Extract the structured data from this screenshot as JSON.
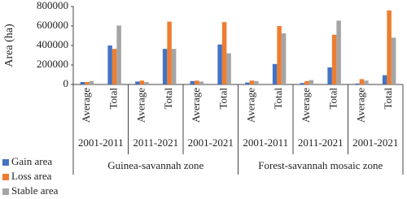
{
  "chart_data": {
    "type": "bar",
    "y_label": "Area (ha)",
    "categories": [
      "Average",
      "Total",
      "Average",
      "Total",
      "Average",
      "Total",
      "Average",
      "Total",
      "Average",
      "Total",
      "Average",
      "Total"
    ],
    "periods": [
      "2001-2011",
      "2011-2021",
      "2001-2021",
      "2001-2011",
      "2011-2021",
      "2001-2021"
    ],
    "zones": [
      "Guinea-savannah zone",
      "Forest-savannah mosaic zone"
    ],
    "series": [
      {
        "name": "Gain area",
        "color": "#4472c4",
        "values": [
          25000,
          400000,
          30000,
          365000,
          35000,
          410000,
          20000,
          210000,
          15000,
          175000,
          10000,
          95000
        ]
      },
      {
        "name": "Loss area",
        "color": "#ed7d31",
        "values": [
          25000,
          365000,
          40000,
          645000,
          40000,
          640000,
          40000,
          600000,
          35000,
          510000,
          55000,
          760000
        ]
      },
      {
        "name": "Stable area",
        "color": "#a5a5a5",
        "values": [
          35000,
          605000,
          25000,
          365000,
          30000,
          320000,
          35000,
          525000,
          45000,
          655000,
          40000,
          480000
        ]
      }
    ],
    "ylim": [
      0,
      800000
    ],
    "yticks": [
      0,
      200000,
      400000,
      600000,
      800000
    ],
    "grid": false,
    "legend": "bottom-left"
  }
}
